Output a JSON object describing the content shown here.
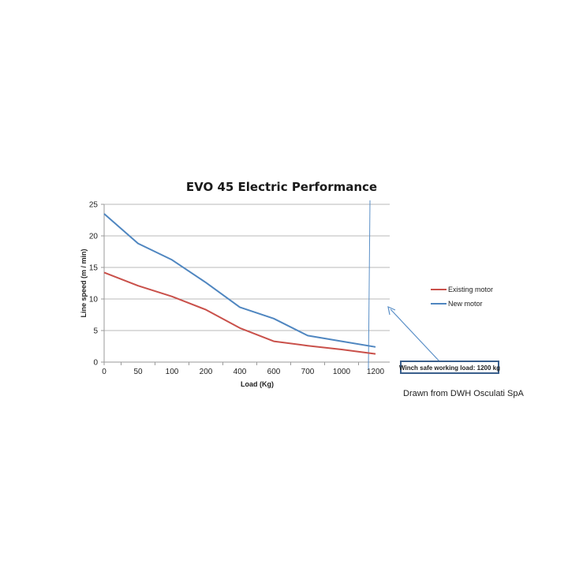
{
  "chart_data": {
    "type": "line",
    "title": "EVO 45 Electric Performance",
    "xlabel": "Load (Kg)",
    "ylabel": "Line speed (m / min)",
    "categories": [
      "0",
      "50",
      "100",
      "200",
      "400",
      "600",
      "700",
      "1000",
      "1200"
    ],
    "ylim": [
      0,
      25
    ],
    "yticks": [
      0,
      5,
      10,
      15,
      20,
      25
    ],
    "grid": "horizontal",
    "legend_position": "right",
    "series": [
      {
        "name": "Existing motor",
        "color": "#c9504a",
        "values": [
          14.2,
          12.1,
          10.4,
          8.3,
          5.4,
          3.3,
          2.6,
          2.0,
          1.3
        ]
      },
      {
        "name": "New motor",
        "color": "#4f86c0",
        "values": [
          23.5,
          18.8,
          16.2,
          12.6,
          8.7,
          6.9,
          4.2,
          3.3,
          2.4
        ]
      }
    ],
    "annotations": {
      "callout": "Winch safe working load: 1200 kg",
      "credit": "Drawn from DWH Osculati SpA"
    }
  },
  "colors": {
    "axis": "#9a9a9a",
    "grid": "#b8b8b8",
    "marker_line": "#5a8fc7",
    "callout_border": "#3a5f8c",
    "arrow": "#5a8fc7"
  }
}
